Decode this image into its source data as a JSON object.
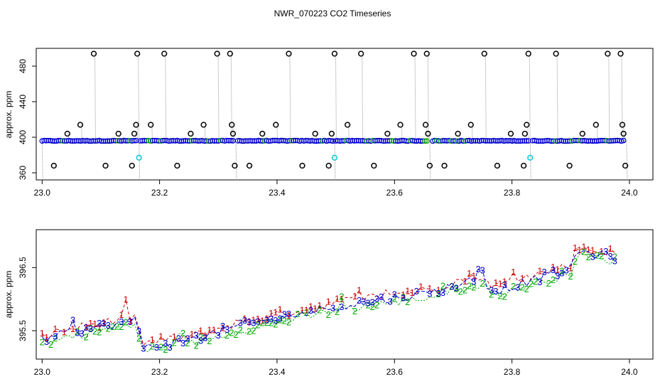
{
  "title": "NWR_070223  CO2 Timeseries",
  "chart_data": [
    {
      "type": "scatter",
      "ylabel": "approx. ppm",
      "xlim": [
        22.99,
        24.04
      ],
      "ylim": [
        352,
        500
      ],
      "xticks": [
        "23.0",
        "23.2",
        "23.4",
        "23.6",
        "23.8",
        "24.0"
      ],
      "yticks": [
        "360",
        "400",
        "440",
        "480"
      ],
      "colors": {
        "baseline": "#0000cc",
        "baseline_alt": "#00aa00",
        "outlier": "#000000",
        "flag": "#00cccc",
        "drop": "#9a9a9a"
      },
      "baseline_value": 396,
      "outliers": [
        {
          "x": 23.02,
          "y": 368
        },
        {
          "x": 23.043,
          "y": 404
        },
        {
          "x": 23.065,
          "y": 414
        },
        {
          "x": 23.088,
          "y": 494
        },
        {
          "x": 23.108,
          "y": 368
        },
        {
          "x": 23.13,
          "y": 404
        },
        {
          "x": 23.153,
          "y": 368
        },
        {
          "x": 23.157,
          "y": 404
        },
        {
          "x": 23.16,
          "y": 414
        },
        {
          "x": 23.162,
          "y": 494
        },
        {
          "x": 23.185,
          "y": 414
        },
        {
          "x": 23.208,
          "y": 494
        },
        {
          "x": 23.23,
          "y": 368
        },
        {
          "x": 23.253,
          "y": 404
        },
        {
          "x": 23.275,
          "y": 414
        },
        {
          "x": 23.298,
          "y": 494
        },
        {
          "x": 23.32,
          "y": 494
        },
        {
          "x": 23.323,
          "y": 414
        },
        {
          "x": 23.325,
          "y": 404
        },
        {
          "x": 23.328,
          "y": 368
        },
        {
          "x": 23.353,
          "y": 368
        },
        {
          "x": 23.375,
          "y": 404
        },
        {
          "x": 23.398,
          "y": 414
        },
        {
          "x": 23.42,
          "y": 494
        },
        {
          "x": 23.443,
          "y": 368
        },
        {
          "x": 23.465,
          "y": 404
        },
        {
          "x": 23.488,
          "y": 368
        },
        {
          "x": 23.493,
          "y": 404
        },
        {
          "x": 23.498,
          "y": 494
        },
        {
          "x": 23.52,
          "y": 414
        },
        {
          "x": 23.543,
          "y": 494
        },
        {
          "x": 23.565,
          "y": 368
        },
        {
          "x": 23.588,
          "y": 404
        },
        {
          "x": 23.61,
          "y": 414
        },
        {
          "x": 23.633,
          "y": 494
        },
        {
          "x": 23.653,
          "y": 414
        },
        {
          "x": 23.655,
          "y": 494
        },
        {
          "x": 23.657,
          "y": 404
        },
        {
          "x": 23.66,
          "y": 368
        },
        {
          "x": 23.685,
          "y": 368
        },
        {
          "x": 23.708,
          "y": 404
        },
        {
          "x": 23.73,
          "y": 414
        },
        {
          "x": 23.753,
          "y": 494
        },
        {
          "x": 23.775,
          "y": 368
        },
        {
          "x": 23.798,
          "y": 404
        },
        {
          "x": 23.82,
          "y": 368
        },
        {
          "x": 23.822,
          "y": 404
        },
        {
          "x": 23.825,
          "y": 414
        },
        {
          "x": 23.828,
          "y": 494
        },
        {
          "x": 23.875,
          "y": 494
        },
        {
          "x": 23.898,
          "y": 368
        },
        {
          "x": 23.92,
          "y": 404
        },
        {
          "x": 23.943,
          "y": 414
        },
        {
          "x": 23.963,
          "y": 494
        },
        {
          "x": 23.985,
          "y": 494
        },
        {
          "x": 23.988,
          "y": 414
        },
        {
          "x": 23.99,
          "y": 404
        },
        {
          "x": 23.993,
          "y": 368
        }
      ],
      "flagged": [
        {
          "x": 23.165,
          "y": 377
        },
        {
          "x": 23.498,
          "y": 377
        },
        {
          "x": 23.831,
          "y": 377
        }
      ]
    },
    {
      "type": "line",
      "ylabel": "approx. ppm",
      "xlim": [
        22.99,
        24.04
      ],
      "ylim": [
        395.05,
        397.1
      ],
      "xticks": [
        "23.0",
        "23.2",
        "23.4",
        "23.6",
        "23.8",
        "24.0"
      ],
      "yticks": [
        "395.5",
        "396.5"
      ],
      "colors": {
        "1": "#cc0000",
        "2": "#00aa00",
        "3": "#0000cc"
      },
      "series": [
        {
          "symbol": "1",
          "trend": [
            {
              "x": 23.0,
              "y": 395.42
            },
            {
              "x": 23.06,
              "y": 395.55
            },
            {
              "x": 23.16,
              "y": 395.72
            },
            {
              "x": 23.17,
              "y": 395.3
            },
            {
              "x": 23.25,
              "y": 395.4
            },
            {
              "x": 23.33,
              "y": 395.62
            },
            {
              "x": 23.5,
              "y": 395.95
            },
            {
              "x": 23.66,
              "y": 396.16
            },
            {
              "x": 23.74,
              "y": 396.38
            },
            {
              "x": 23.77,
              "y": 396.2
            },
            {
              "x": 23.9,
              "y": 396.55
            },
            {
              "x": 23.91,
              "y": 396.82
            },
            {
              "x": 23.98,
              "y": 396.72
            }
          ]
        },
        {
          "symbol": "2",
          "trend": [
            {
              "x": 23.0,
              "y": 395.3
            },
            {
              "x": 23.06,
              "y": 395.44
            },
            {
              "x": 23.16,
              "y": 395.6
            },
            {
              "x": 23.17,
              "y": 395.18
            },
            {
              "x": 23.25,
              "y": 395.28
            },
            {
              "x": 23.33,
              "y": 395.5
            },
            {
              "x": 23.5,
              "y": 395.82
            },
            {
              "x": 23.66,
              "y": 396.03
            },
            {
              "x": 23.74,
              "y": 396.25
            },
            {
              "x": 23.77,
              "y": 396.05
            },
            {
              "x": 23.9,
              "y": 396.42
            },
            {
              "x": 23.91,
              "y": 396.7
            },
            {
              "x": 23.98,
              "y": 396.6
            }
          ]
        },
        {
          "symbol": "3",
          "trend": [
            {
              "x": 23.0,
              "y": 395.36
            },
            {
              "x": 23.06,
              "y": 395.5
            },
            {
              "x": 23.16,
              "y": 395.66
            },
            {
              "x": 23.17,
              "y": 395.24
            },
            {
              "x": 23.25,
              "y": 395.34
            },
            {
              "x": 23.33,
              "y": 395.56
            },
            {
              "x": 23.5,
              "y": 395.88
            },
            {
              "x": 23.66,
              "y": 396.1
            },
            {
              "x": 23.74,
              "y": 396.32
            },
            {
              "x": 23.77,
              "y": 396.12
            },
            {
              "x": 23.9,
              "y": 396.48
            },
            {
              "x": 23.91,
              "y": 396.76
            },
            {
              "x": 23.98,
              "y": 396.66
            }
          ]
        }
      ]
    }
  ]
}
